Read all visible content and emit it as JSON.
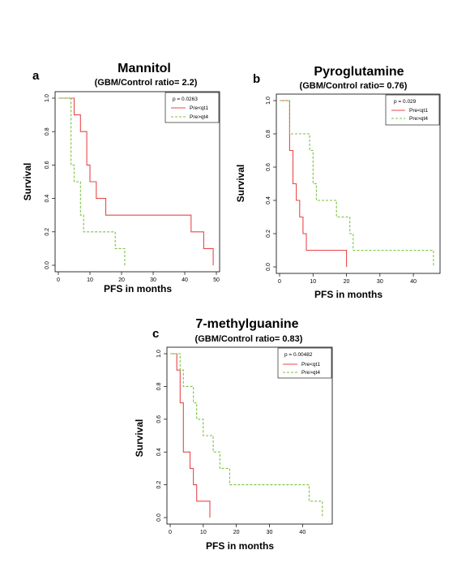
{
  "chart_data": [
    {
      "type": "line",
      "panel": "a",
      "title": "Mannitol",
      "subtitle": "(GBM/Control ratio= 2.2)",
      "xlabel": "PFS in months",
      "ylabel": "Survival",
      "xlim": [
        0,
        50
      ],
      "ylim": [
        0,
        1
      ],
      "x_ticks": [
        "0",
        "10",
        "20",
        "30",
        "40",
        "50"
      ],
      "y_ticks": [
        "0.0",
        "0.2",
        "0.4",
        "0.6",
        "0.8",
        "1.0"
      ],
      "annotation": "p = 0.0263",
      "legend_position": "top-right",
      "grid": false,
      "series": [
        {
          "name": "Pre<qt1",
          "color": "#e8474a",
          "dashed": false,
          "x": [
            0,
            5,
            7,
            9,
            10,
            12,
            15,
            19,
            42,
            46,
            49
          ],
          "y": [
            1.0,
            0.9,
            0.8,
            0.6,
            0.5,
            0.4,
            0.3,
            0.3,
            0.2,
            0.1,
            0.0
          ]
        },
        {
          "name": "Pre>qt4",
          "color": "#7ac143",
          "dashed": true,
          "x": [
            0,
            4,
            5,
            7,
            8,
            18,
            21
          ],
          "y": [
            1.0,
            0.6,
            0.5,
            0.3,
            0.2,
            0.1,
            0.0
          ]
        }
      ]
    },
    {
      "type": "line",
      "panel": "b",
      "title": "Pyroglutamine",
      "subtitle": "(GBM/Control ratio= 0.76)",
      "xlabel": "PFS in months",
      "ylabel": "Survival",
      "xlim": [
        0,
        47
      ],
      "ylim": [
        0,
        1
      ],
      "x_ticks": [
        "0",
        "10",
        "20",
        "30",
        "40"
      ],
      "y_ticks": [
        "0.0",
        "0.2",
        "0.4",
        "0.6",
        "0.8",
        "1.0"
      ],
      "annotation": "p = 0.029",
      "legend_position": "top-right",
      "grid": false,
      "series": [
        {
          "name": "Pre<qt1",
          "color": "#e8474a",
          "dashed": false,
          "x": [
            0,
            3,
            4,
            5,
            6,
            7,
            8,
            20
          ],
          "y": [
            1.0,
            0.7,
            0.5,
            0.4,
            0.3,
            0.2,
            0.1,
            0.0
          ]
        },
        {
          "name": "Pre>qt4",
          "color": "#7ac143",
          "dashed": true,
          "x": [
            0,
            3,
            9,
            10,
            11,
            17,
            21,
            22,
            46
          ],
          "y": [
            1.0,
            0.8,
            0.7,
            0.5,
            0.4,
            0.3,
            0.2,
            0.1,
            0.0
          ]
        }
      ]
    },
    {
      "type": "line",
      "panel": "c",
      "title": "7-methylguanine",
      "subtitle": "(GBM/Control ratio= 0.83)",
      "xlabel": "PFS in months",
      "ylabel": "Survival",
      "xlim": [
        0,
        48
      ],
      "ylim": [
        0,
        1
      ],
      "x_ticks": [
        "0",
        "10",
        "20",
        "30",
        "40"
      ],
      "y_ticks": [
        "0.0",
        "0.2",
        "0.4",
        "0.6",
        "0.8",
        "1.0"
      ],
      "annotation": "p = 0.00482",
      "legend_position": "top-right",
      "grid": false,
      "series": [
        {
          "name": "Pre<qt1",
          "color": "#e8474a",
          "dashed": false,
          "x": [
            0,
            2,
            3,
            4,
            6,
            7,
            8,
            12
          ],
          "y": [
            1.0,
            0.9,
            0.7,
            0.4,
            0.3,
            0.2,
            0.1,
            0.0
          ]
        },
        {
          "name": "Pre>qt4",
          "color": "#7ac143",
          "dashed": true,
          "x": [
            0,
            3,
            4,
            7,
            8,
            10,
            13,
            15,
            18,
            42,
            46
          ],
          "y": [
            1.0,
            0.9,
            0.8,
            0.7,
            0.6,
            0.5,
            0.4,
            0.3,
            0.2,
            0.1,
            0.0
          ]
        }
      ]
    }
  ]
}
